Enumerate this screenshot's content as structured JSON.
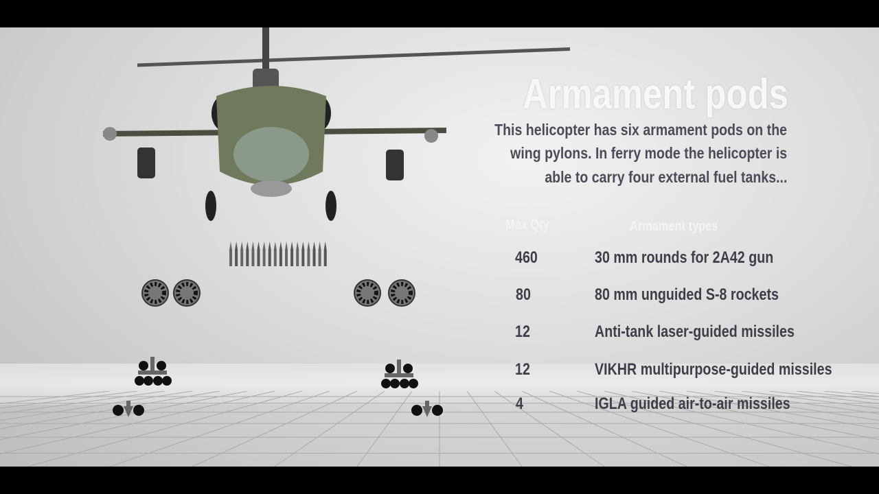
{
  "title": "Armament pods",
  "description": [
    "This helicopter has six armament pods on the",
    "wing pylons. In ferry mode the helicopter is",
    "able to carry four external fuel tanks..."
  ],
  "table": {
    "headers": {
      "qty": "Max Qty",
      "type": "Armament types"
    },
    "rows": [
      {
        "qty": "460",
        "type": "30 mm rounds for 2A42 gun",
        "icon": "ammo-belt-icon"
      },
      {
        "qty": "80",
        "type": "80 mm unguided S-8 rockets",
        "icon": "rocket-pod-icon"
      },
      {
        "qty": "12",
        "type": "Anti-tank laser-guided missiles",
        "icon": "missile-rack-icon"
      },
      {
        "qty": "12",
        "type": "VIKHR multipurpose-guided missiles",
        "icon": "missile-rack-icon"
      },
      {
        "qty": "4",
        "type": "IGLA guided air-to-air missiles",
        "icon": "aa-missile-icon"
      }
    ]
  },
  "colors": {
    "text": "#3c3e48",
    "title": "#f7f7f7",
    "helicopter": "#6f7a5c"
  }
}
